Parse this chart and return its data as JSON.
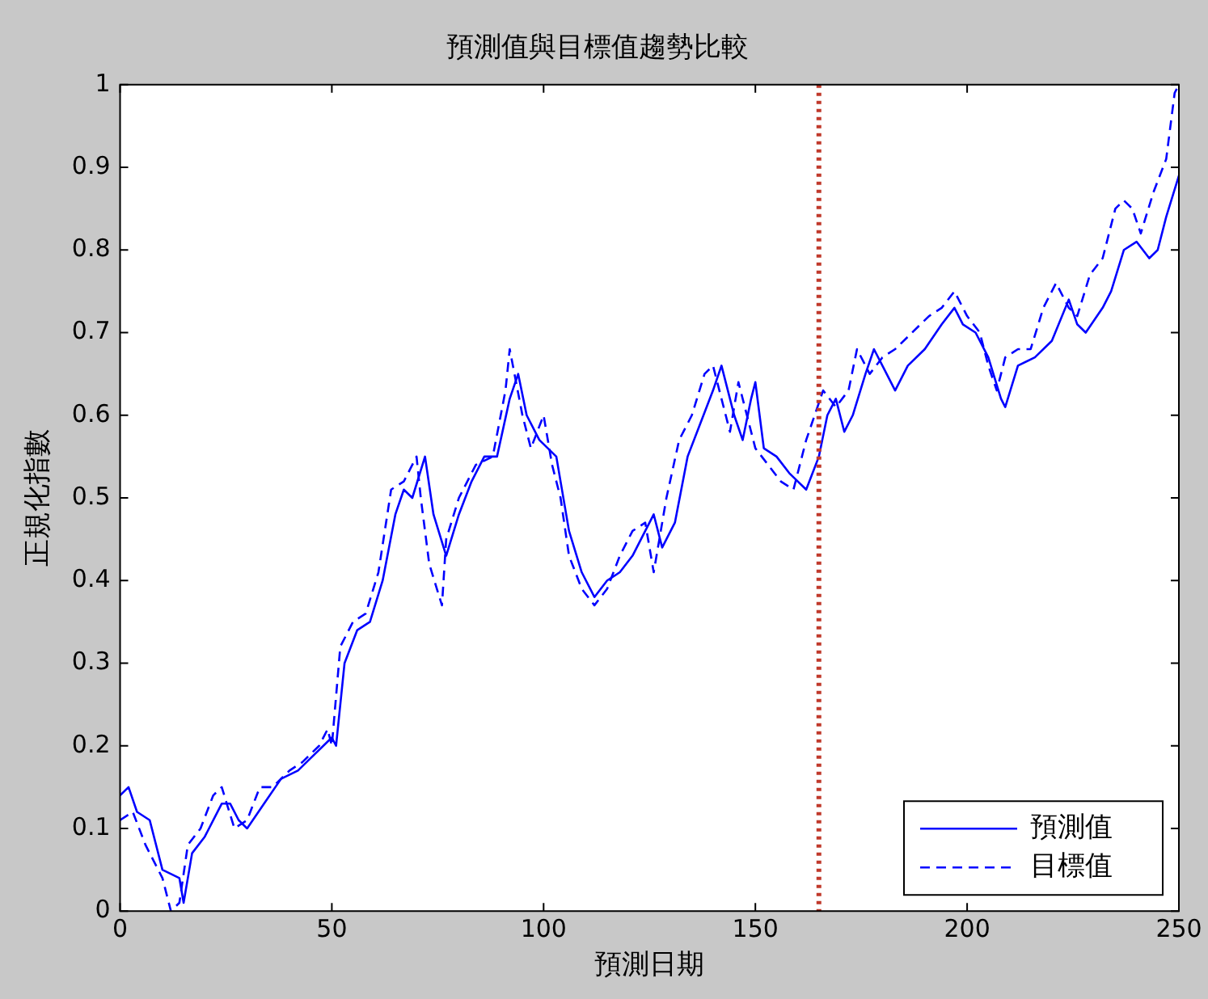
{
  "chart_data": {
    "type": "line",
    "title": "預測值與目標值趨勢比較",
    "xlabel": "預測日期",
    "ylabel": "正規化指數",
    "xlim": [
      0,
      250
    ],
    "xticks": [
      0,
      50,
      100,
      150,
      200,
      250
    ],
    "ylim": [
      0,
      1
    ],
    "yticks": [
      0,
      0.1,
      0.2,
      0.3,
      0.4,
      0.5,
      0.6,
      0.7,
      0.8,
      0.9,
      1
    ],
    "grid": false,
    "legend": "bottom right",
    "marker": "none",
    "ref_lines": [
      {
        "axis": "x",
        "value": 165,
        "color": "#c0392b",
        "line_style": "dotted"
      }
    ],
    "series": [
      {
        "name": "預測值",
        "color": "#0000ff",
        "line_style": "solid",
        "x": [
          0,
          2,
          4,
          7,
          10,
          14,
          15,
          17,
          20,
          24,
          26,
          28,
          30,
          34,
          38,
          42,
          46,
          50,
          51,
          53,
          56,
          59,
          62,
          65,
          67,
          69,
          72,
          74,
          77,
          80,
          83,
          86,
          89,
          92,
          94,
          96,
          99,
          101,
          103,
          106,
          109,
          112,
          115,
          118,
          121,
          123,
          126,
          128,
          131,
          134,
          137,
          140,
          142,
          145,
          147,
          149,
          150,
          152,
          155,
          158,
          162,
          165,
          167,
          169,
          171,
          173,
          176,
          178,
          181,
          183,
          186,
          190,
          194,
          197,
          199,
          202,
          205,
          208,
          209,
          212,
          216,
          220,
          224,
          226,
          228,
          232,
          234,
          237,
          240,
          243,
          245,
          247,
          250
        ],
        "values": [
          0.14,
          0.15,
          0.12,
          0.11,
          0.05,
          0.04,
          0.01,
          0.07,
          0.09,
          0.13,
          0.13,
          0.11,
          0.1,
          0.13,
          0.16,
          0.17,
          0.19,
          0.21,
          0.2,
          0.3,
          0.34,
          0.35,
          0.4,
          0.48,
          0.51,
          0.5,
          0.55,
          0.48,
          0.43,
          0.48,
          0.52,
          0.55,
          0.55,
          0.62,
          0.65,
          0.6,
          0.57,
          0.56,
          0.55,
          0.46,
          0.41,
          0.38,
          0.4,
          0.41,
          0.43,
          0.45,
          0.48,
          0.44,
          0.47,
          0.55,
          0.59,
          0.63,
          0.66,
          0.6,
          0.57,
          0.62,
          0.64,
          0.56,
          0.55,
          0.53,
          0.51,
          0.55,
          0.6,
          0.62,
          0.58,
          0.6,
          0.65,
          0.68,
          0.65,
          0.63,
          0.66,
          0.68,
          0.71,
          0.73,
          0.71,
          0.7,
          0.67,
          0.62,
          0.61,
          0.66,
          0.67,
          0.69,
          0.74,
          0.71,
          0.7,
          0.73,
          0.75,
          0.8,
          0.81,
          0.79,
          0.8,
          0.84,
          0.89
        ]
      },
      {
        "name": "目標值",
        "color": "#0000ff",
        "line_style": "dashed",
        "x": [
          0,
          3,
          6,
          10,
          12,
          14,
          16,
          19,
          22,
          24,
          27,
          30,
          33,
          36,
          40,
          43,
          47,
          49,
          50,
          52,
          55,
          58,
          61,
          64,
          67,
          70,
          71,
          73,
          76,
          77,
          80,
          84,
          88,
          91,
          92,
          95,
          97,
          100,
          102,
          104,
          106,
          109,
          112,
          115,
          118,
          121,
          124,
          126,
          129,
          132,
          135,
          138,
          140,
          142,
          144,
          146,
          148,
          150,
          153,
          156,
          159,
          162,
          164,
          166,
          169,
          172,
          174,
          177,
          180,
          183,
          187,
          191,
          194,
          197,
          200,
          203,
          205,
          207,
          209,
          212,
          215,
          218,
          221,
          224,
          226,
          229,
          232,
          235,
          237,
          239,
          241,
          244,
          247,
          249,
          250
        ],
        "values": [
          0.11,
          0.12,
          0.08,
          0.04,
          0.0,
          0.01,
          0.08,
          0.1,
          0.14,
          0.15,
          0.1,
          0.11,
          0.15,
          0.15,
          0.17,
          0.18,
          0.2,
          0.22,
          0.2,
          0.32,
          0.35,
          0.36,
          0.41,
          0.51,
          0.52,
          0.55,
          0.5,
          0.42,
          0.37,
          0.45,
          0.5,
          0.54,
          0.55,
          0.63,
          0.68,
          0.6,
          0.56,
          0.6,
          0.54,
          0.5,
          0.43,
          0.39,
          0.37,
          0.39,
          0.43,
          0.46,
          0.47,
          0.41,
          0.5,
          0.57,
          0.6,
          0.65,
          0.66,
          0.62,
          0.58,
          0.64,
          0.6,
          0.56,
          0.54,
          0.52,
          0.51,
          0.57,
          0.6,
          0.63,
          0.61,
          0.63,
          0.68,
          0.65,
          0.67,
          0.68,
          0.7,
          0.72,
          0.73,
          0.75,
          0.72,
          0.7,
          0.66,
          0.63,
          0.67,
          0.68,
          0.68,
          0.73,
          0.76,
          0.73,
          0.72,
          0.77,
          0.79,
          0.85,
          0.86,
          0.85,
          0.82,
          0.87,
          0.91,
          0.99,
          1.0
        ]
      }
    ]
  }
}
